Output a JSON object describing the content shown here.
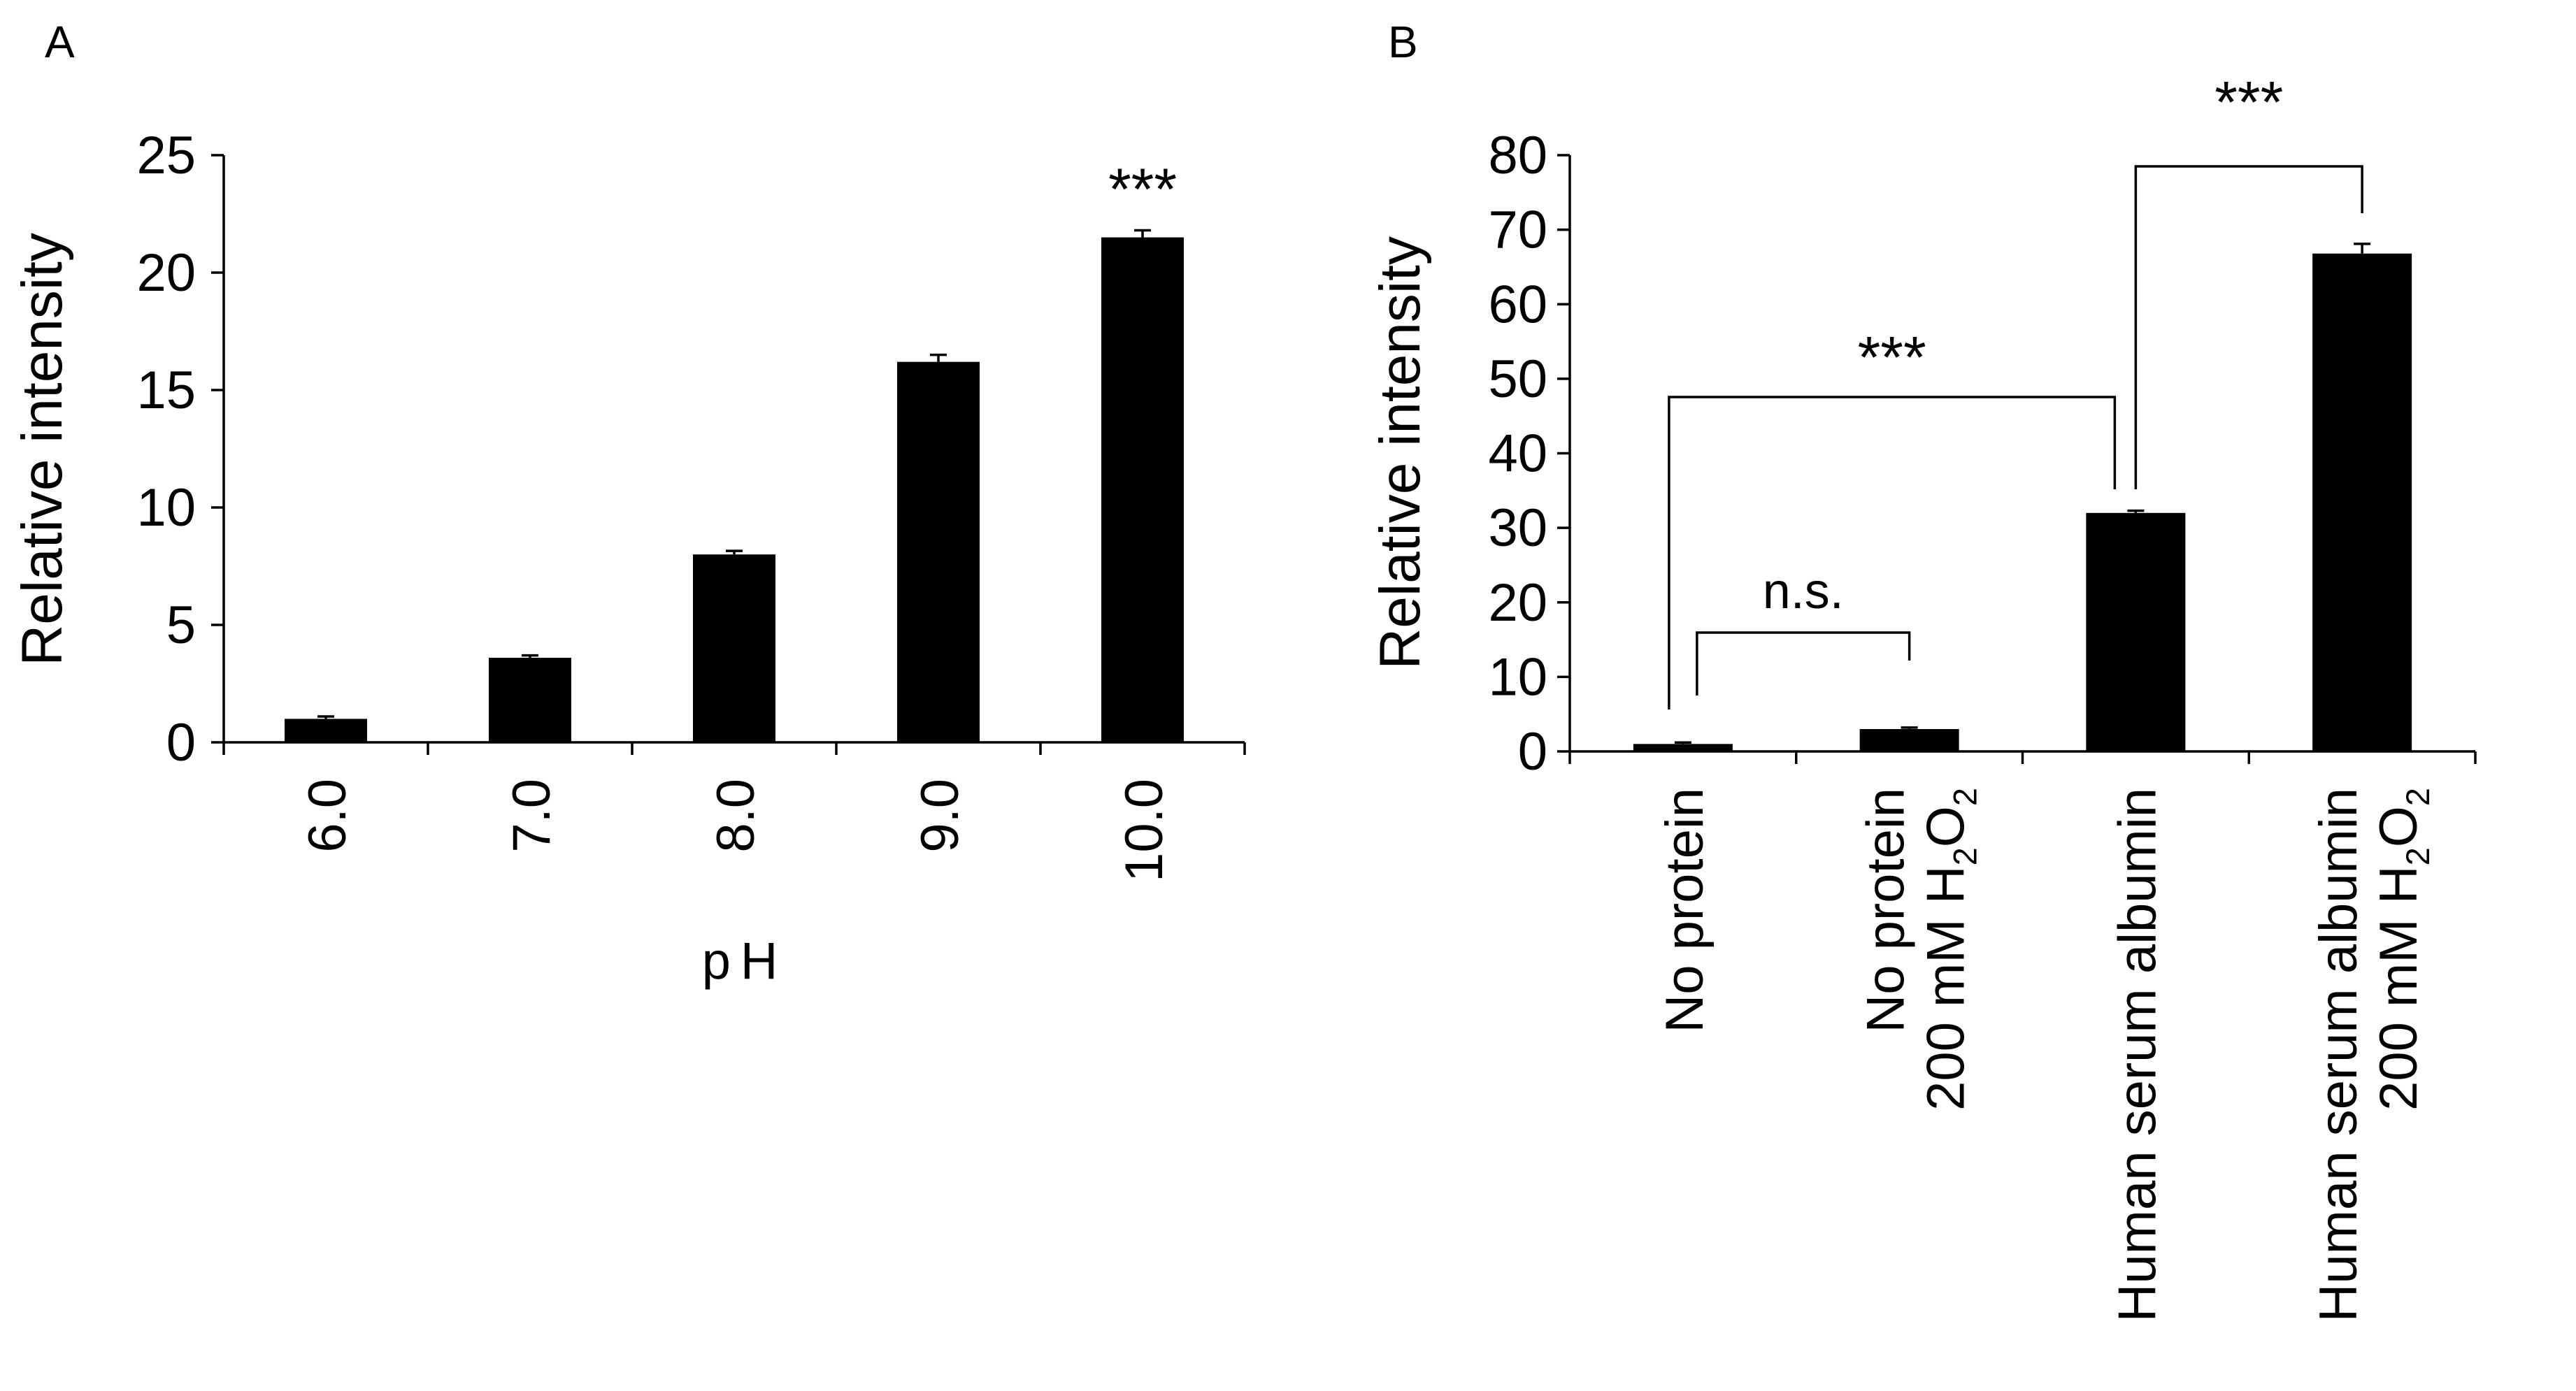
{
  "chart_data": [
    {
      "panel_label": "A",
      "type": "bar",
      "categories": [
        "6.0",
        "7.0",
        "8.0",
        "9.0",
        "10.0"
      ],
      "values": [
        1.0,
        3.6,
        8.0,
        16.2,
        21.5
      ],
      "errors": [
        0.1,
        0.1,
        0.15,
        0.3,
        0.3
      ],
      "xlabel": "pH",
      "ylabel": "Relative intensity",
      "ylim": [
        0,
        25
      ],
      "yticks": [
        "0",
        "5",
        "10",
        "15",
        "20",
        "25"
      ],
      "bar_color": "#000000",
      "annotations": [
        {
          "text": "***",
          "target": "10.0"
        }
      ],
      "grid": false
    },
    {
      "panel_label": "B",
      "type": "bar",
      "categories": [
        {
          "line1": "No protein",
          "line2": ""
        },
        {
          "line1": "No protein",
          "line2": "200 mM H2O2"
        },
        {
          "line1": "Human serum albumin",
          "line2": ""
        },
        {
          "line1": "Human serum albumin",
          "line2": "200 mM H2O2"
        }
      ],
      "values": [
        1.0,
        3.0,
        32.0,
        66.8
      ],
      "errors": [
        0.2,
        0.2,
        0.3,
        1.3
      ],
      "xlabel": "",
      "ylabel": "Relative intensity",
      "ylim": [
        0,
        80
      ],
      "yticks": [
        "0",
        "10",
        "20",
        "30",
        "40",
        "50",
        "60",
        "70",
        "80"
      ],
      "bar_color": "#000000",
      "annotations": [
        {
          "text": "n.s.",
          "from": 0,
          "to": 1
        },
        {
          "text": "***",
          "from": 0,
          "to": 2
        },
        {
          "text": "***",
          "from": 2,
          "to": 3
        }
      ],
      "grid": false
    }
  ]
}
